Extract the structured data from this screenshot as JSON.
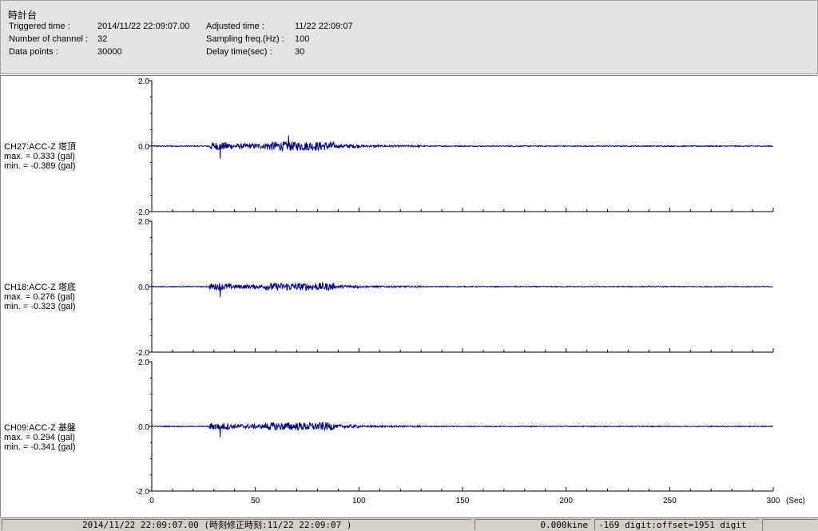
{
  "header": {
    "title": "時計台",
    "triggered_label": "Triggered time :",
    "triggered_value": "2014/11/22 22:09:07.00",
    "channels_label": "Number of channel :",
    "channels_value": "32",
    "points_label": "Data points :",
    "points_value": "30000",
    "adjusted_label": "Adjusted time :",
    "adjusted_value": "11/22 22:09:07",
    "sampling_label": "Sampling freq.(Hz) :",
    "sampling_value": "100",
    "delay_label": "Delay time(sec) :",
    "delay_value": "30"
  },
  "channels": [
    {
      "name": "CH27:ACC-Z 塔頂",
      "max": "max. = 0.333 (gal)",
      "min": "min. = -0.389 (gal)",
      "peak_max": 0.333,
      "peak_min": -0.389
    },
    {
      "name": "CH18:ACC-Z 塔底",
      "max": "max. = 0.276 (gal)",
      "min": "min. = -0.323 (gal)",
      "peak_max": 0.276,
      "peak_min": -0.323
    },
    {
      "name": "CH09:ACC-Z 基盤",
      "max": "max. = 0.294 (gal)",
      "min": "min. = -0.341 (gal)",
      "peak_max": 0.294,
      "peak_min": -0.341
    }
  ],
  "chart_data": {
    "type": "line",
    "x_ticks": [
      "0",
      "50",
      "100",
      "150",
      "200",
      "250",
      "300"
    ],
    "xlabel": "(Sec)",
    "xlim": [
      0,
      300
    ],
    "y_ticks": [
      "2.0",
      "0.0",
      "-2.0"
    ],
    "ylim": [
      -2.0,
      2.0
    ],
    "series_color": "#000080"
  },
  "status": {
    "time": "2014/11/22 22:09:07.00  (時刻修正時刻:11/22 22:09:07  )",
    "kine": "0.000kine",
    "digit": "-169 digit:offset=1951 digit"
  }
}
